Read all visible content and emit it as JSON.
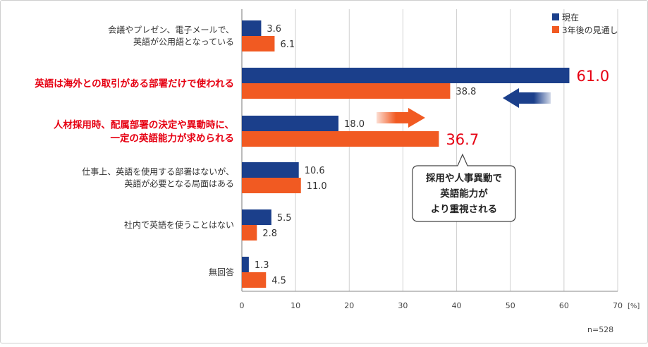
{
  "chart_data": {
    "type": "bar",
    "orientation": "horizontal",
    "categories": [
      [
        "会議やプレゼン、電子メールで、",
        "英語が公用語となっている"
      ],
      [
        "英語は海外との取引がある部署だけで使われる"
      ],
      [
        "人材採用時、配属部署の決定や異動時に、",
        "一定の英語能力が求められる"
      ],
      [
        "仕事上、英語を使用する部署はないが、",
        "英語が必要となる局面はある"
      ],
      [
        "社内で英語を使うことはない"
      ],
      [
        "無回答"
      ]
    ],
    "highlighted_categories": [
      1,
      2
    ],
    "series": [
      {
        "name": "現在",
        "values": [
          3.6,
          61.0,
          18.0,
          10.6,
          5.5,
          1.3
        ],
        "labels": [
          "3.6",
          "61.0",
          "18.0",
          "10.6",
          "5.5",
          "1.3"
        ]
      },
      {
        "name": "3年後の見通し",
        "values": [
          6.1,
          38.8,
          36.7,
          11.0,
          2.8,
          4.5
        ],
        "labels": [
          "6.1",
          "38.8",
          "36.7",
          "11.0",
          "2.8",
          "4.5"
        ]
      }
    ],
    "emphasized_labels": [
      {
        "series": 0,
        "index": 1
      },
      {
        "series": 1,
        "index": 2
      }
    ],
    "xlim": [
      0,
      70
    ],
    "xticks": [
      "0",
      "10",
      "20",
      "30",
      "40",
      "50",
      "60",
      "70"
    ],
    "xunit": "[%]",
    "legend_position": "top-right",
    "grid": true,
    "colors": {
      "current": "#1b3f8b",
      "future": "#f15a22",
      "highlight_text": "#e60012",
      "emphasis_value": "#e60012",
      "arrow_left": "#1b3f8b",
      "arrow_right": "#f15a22"
    },
    "callout": [
      "採用や人事異動で",
      "英語能力が",
      "より重視される"
    ],
    "sample_size": "n=528"
  }
}
